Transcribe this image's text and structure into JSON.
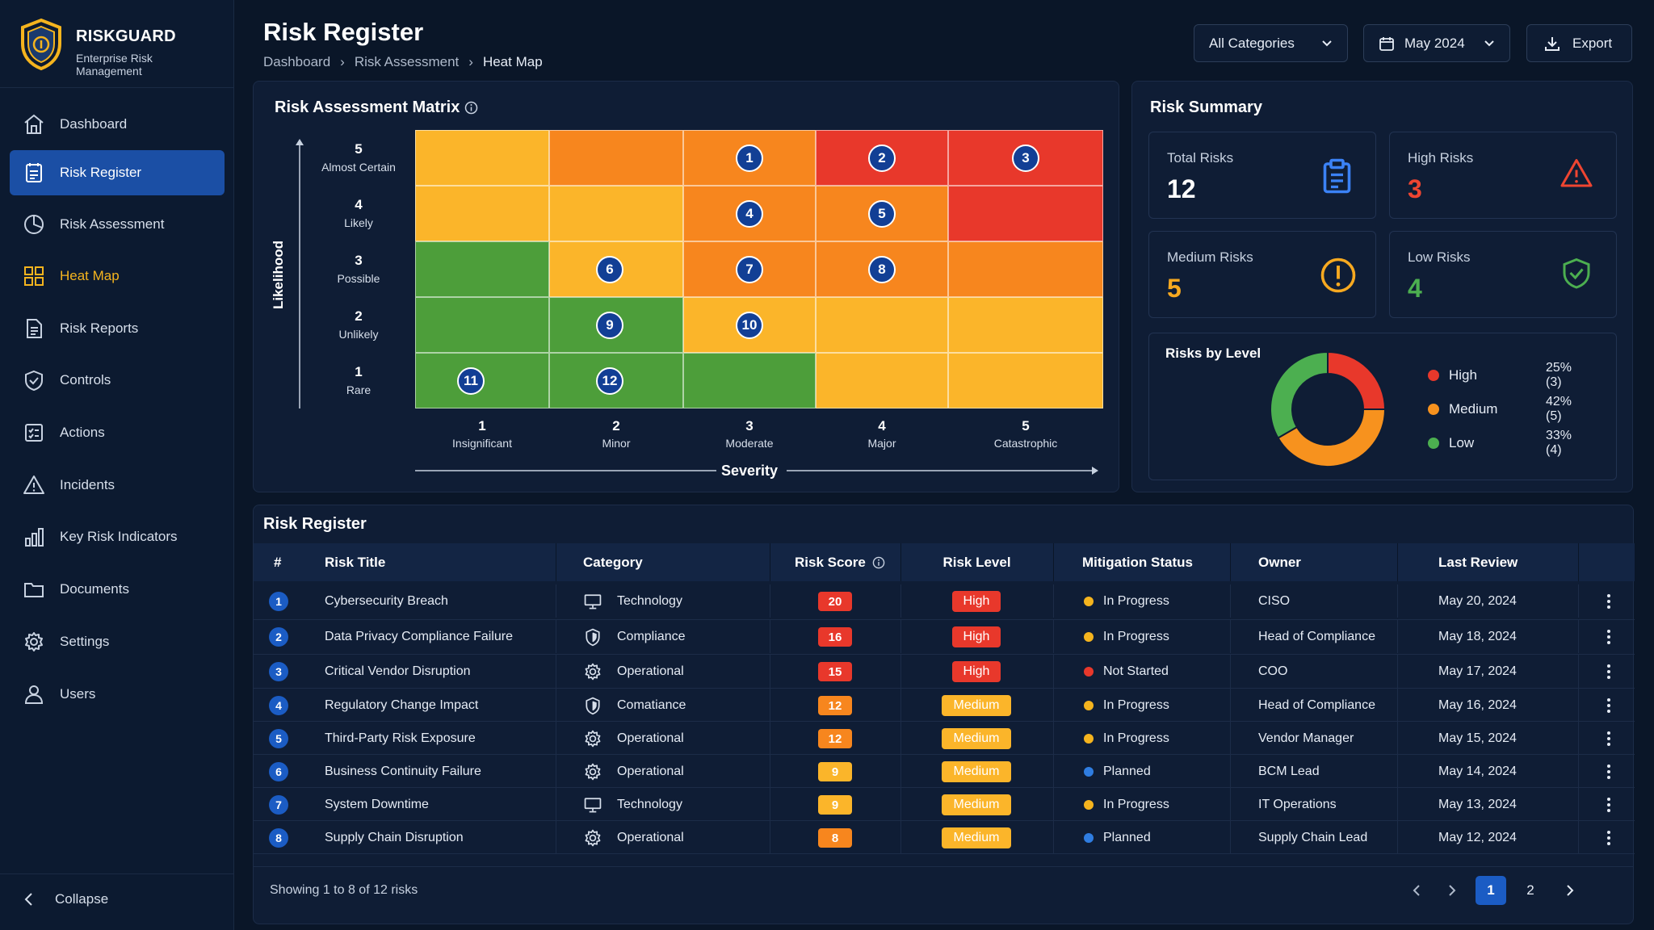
{
  "brand": {
    "name": "RISKGUARD",
    "subtitle": "Enterprise Risk Management"
  },
  "sidebar": {
    "items": [
      {
        "label": "Dashboard",
        "icon": "home-icon"
      },
      {
        "label": "Risk Register",
        "icon": "register-icon",
        "active": true
      },
      {
        "label": "Risk Assessment",
        "icon": "pie-chart-icon"
      },
      {
        "label": "Heat Map",
        "icon": "grid-icon",
        "accent": true
      },
      {
        "label": "Risk Reports",
        "icon": "document-icon"
      },
      {
        "label": "Controls",
        "icon": "shield-check-icon"
      },
      {
        "label": "Actions",
        "icon": "checklist-icon"
      },
      {
        "label": "Incidents",
        "icon": "warning-icon"
      },
      {
        "label": "Key Risk Indicators",
        "icon": "bar-chart-icon"
      },
      {
        "label": "Documents",
        "icon": "folder-icon"
      },
      {
        "label": "Settings",
        "icon": "gear-icon"
      },
      {
        "label": "Users",
        "icon": "user-icon"
      }
    ],
    "collapse_label": "Collapse"
  },
  "header": {
    "title": "Risk Register",
    "breadcrumb": [
      "Dashboard",
      "Risk Assessment",
      "Heat Map"
    ],
    "category_filter": "All Categories",
    "date_filter": "May 2024",
    "export_label": "Export"
  },
  "matrix": {
    "title": "Risk Assessment Matrix",
    "y_axis_label": "Likelihood",
    "x_axis_label": "Severity",
    "likelihood": [
      {
        "n": "5",
        "label": "Almost Certain"
      },
      {
        "n": "4",
        "label": "Likely"
      },
      {
        "n": "3",
        "label": "Possible"
      },
      {
        "n": "2",
        "label": "Unlikely"
      },
      {
        "n": "1",
        "label": "Rare"
      }
    ],
    "severity": [
      {
        "n": "1",
        "label": "Insignificant"
      },
      {
        "n": "2",
        "label": "Minor"
      },
      {
        "n": "3",
        "label": "Moderate"
      },
      {
        "n": "4",
        "label": "Major"
      },
      {
        "n": "5",
        "label": "Catastrophic"
      }
    ],
    "colors": {
      "green": "#4d9e3a",
      "yellow": "#fbb52a",
      "orange": "#f7861e",
      "red": "#e8382b"
    },
    "grid": [
      [
        "yellow",
        "orange",
        "orange",
        "red",
        "red"
      ],
      [
        "yellow",
        "yellow",
        "orange",
        "orange",
        "red"
      ],
      [
        "green",
        "yellow",
        "orange",
        "orange",
        "orange"
      ],
      [
        "green",
        "green",
        "yellow",
        "yellow",
        "yellow"
      ],
      [
        "green",
        "green",
        "green",
        "yellow",
        "yellow"
      ]
    ],
    "markers": [
      {
        "id": "1",
        "likelihood": 5,
        "severity": 3
      },
      {
        "id": "2",
        "likelihood": 5,
        "severity": 4
      },
      {
        "id": "3",
        "likelihood": 5,
        "severity": 5
      },
      {
        "id": "4",
        "likelihood": 4,
        "severity": 3
      },
      {
        "id": "5",
        "likelihood": 4,
        "severity": 4
      },
      {
        "id": "6",
        "likelihood": 3,
        "severity": 2
      },
      {
        "id": "7",
        "likelihood": 3,
        "severity": 3
      },
      {
        "id": "8",
        "likelihood": 3,
        "severity": 4
      },
      {
        "id": "9",
        "likelihood": 2,
        "severity": 2
      },
      {
        "id": "10",
        "likelihood": 2,
        "severity": 3
      },
      {
        "id": "11",
        "likelihood": 1,
        "severity": 1
      },
      {
        "id": "12",
        "likelihood": 1,
        "severity": 2
      }
    ]
  },
  "summary": {
    "title": "Risk Summary",
    "cards": [
      {
        "label": "Total Risks",
        "value": "12",
        "color": "#ffffff",
        "icon": "clipboard-icon",
        "icon_color": "#3b82f6"
      },
      {
        "label": "High Risks",
        "value": "3",
        "color": "#ef4531",
        "icon": "warning-icon",
        "icon_color": "#ef4531"
      },
      {
        "label": "Medium Risks",
        "value": "5",
        "color": "#f7a920",
        "icon": "exclamation-circle-icon",
        "icon_color": "#f7a920"
      },
      {
        "label": "Low Risks",
        "value": "4",
        "color": "#4caf50",
        "icon": "shield-check-icon",
        "icon_color": "#4caf50"
      }
    ],
    "by_level_title": "Risks by Level"
  },
  "chart_data": {
    "type": "pie",
    "title": "Risks by Level",
    "categories": [
      "High",
      "Medium",
      "Low"
    ],
    "values": [
      3,
      5,
      4
    ],
    "percent_labels": [
      "25% (3)",
      "42% (5)",
      "33% (4)"
    ],
    "colors": [
      "#e8382b",
      "#f7921e",
      "#4caf50"
    ],
    "donut": true,
    "legend": "right"
  },
  "table": {
    "title": "Risk Register",
    "columns": [
      "#",
      "Risk Title",
      "Category",
      "Risk Score",
      "Risk Level",
      "Mitigation Status",
      "Owner",
      "Last Review"
    ],
    "rows": [
      {
        "num": "1",
        "title": "Cybersecurity Breach",
        "category": "Technology",
        "cat_icon": "monitor-icon",
        "score": "20",
        "level": "High",
        "status": "In Progress",
        "owner": "CISO",
        "review": "May 20, 2024"
      },
      {
        "num": "2",
        "title": "Data Privacy Compliance Failure",
        "category": "Compliance",
        "cat_icon": "shield-icon",
        "score": "16",
        "level": "High",
        "status": "In Progress",
        "owner": "Head of Compliance",
        "review": "May 18, 2024"
      },
      {
        "num": "3",
        "title": "Critical Vendor Disruption",
        "category": "Operational",
        "cat_icon": "gear-icon",
        "score": "15",
        "level": "High",
        "status": "Not Started",
        "owner": "COO",
        "review": "May 17, 2024"
      },
      {
        "num": "4",
        "title": "Regulatory Change Impact",
        "category": "Comatiance",
        "cat_icon": "shield-icon",
        "score": "12",
        "level": "Medium",
        "status": "In Progress",
        "owner": "Head of Compliance",
        "review": "May 16, 2024"
      },
      {
        "num": "5",
        "title": "Third-Party Risk Exposure",
        "category": "Operational",
        "cat_icon": "gear-icon",
        "score": "12",
        "level": "Medium",
        "status": "In Progress",
        "owner": "Vendor Manager",
        "review": "May 15, 2024"
      },
      {
        "num": "6",
        "title": "Business Continuity Failure",
        "category": "Operational",
        "cat_icon": "gear-icon",
        "score": "9",
        "level": "Medium",
        "status": "Planned",
        "owner": "BCM Lead",
        "review": "May 14, 2024"
      },
      {
        "num": "7",
        "title": "System Downtime",
        "category": "Technology",
        "cat_icon": "monitor-icon",
        "score": "9",
        "level": "Medium",
        "status": "In Progress",
        "owner": "IT Operations",
        "review": "May 13, 2024"
      },
      {
        "num": "8",
        "title": "Supply Chain Disruption",
        "category": "Operational",
        "cat_icon": "gear-icon",
        "score": "8",
        "level": "Medium",
        "status": "Planned",
        "owner": "Supply Chain Lead",
        "review": "May 12, 2024"
      }
    ],
    "score_colors": {
      "20": "#e8382b",
      "16": "#e8382b",
      "15": "#e8382b",
      "12": "#f7861e",
      "9": "#fbb52a",
      "8": "#f7861e"
    },
    "level_colors": {
      "High": {
        "bg": "#e8382b",
        "fg": "#ffffff"
      },
      "Medium": {
        "bg": "#fbb52a",
        "fg": "#ffffff"
      }
    },
    "status_colors": {
      "In Progress": "#f5b41e",
      "Not Started": "#e8382b",
      "Planned": "#2f7de1"
    }
  },
  "pagination": {
    "summary": "Showing 1 to 8 of 12 risks",
    "pages": [
      "1",
      "2"
    ],
    "current": "1"
  }
}
